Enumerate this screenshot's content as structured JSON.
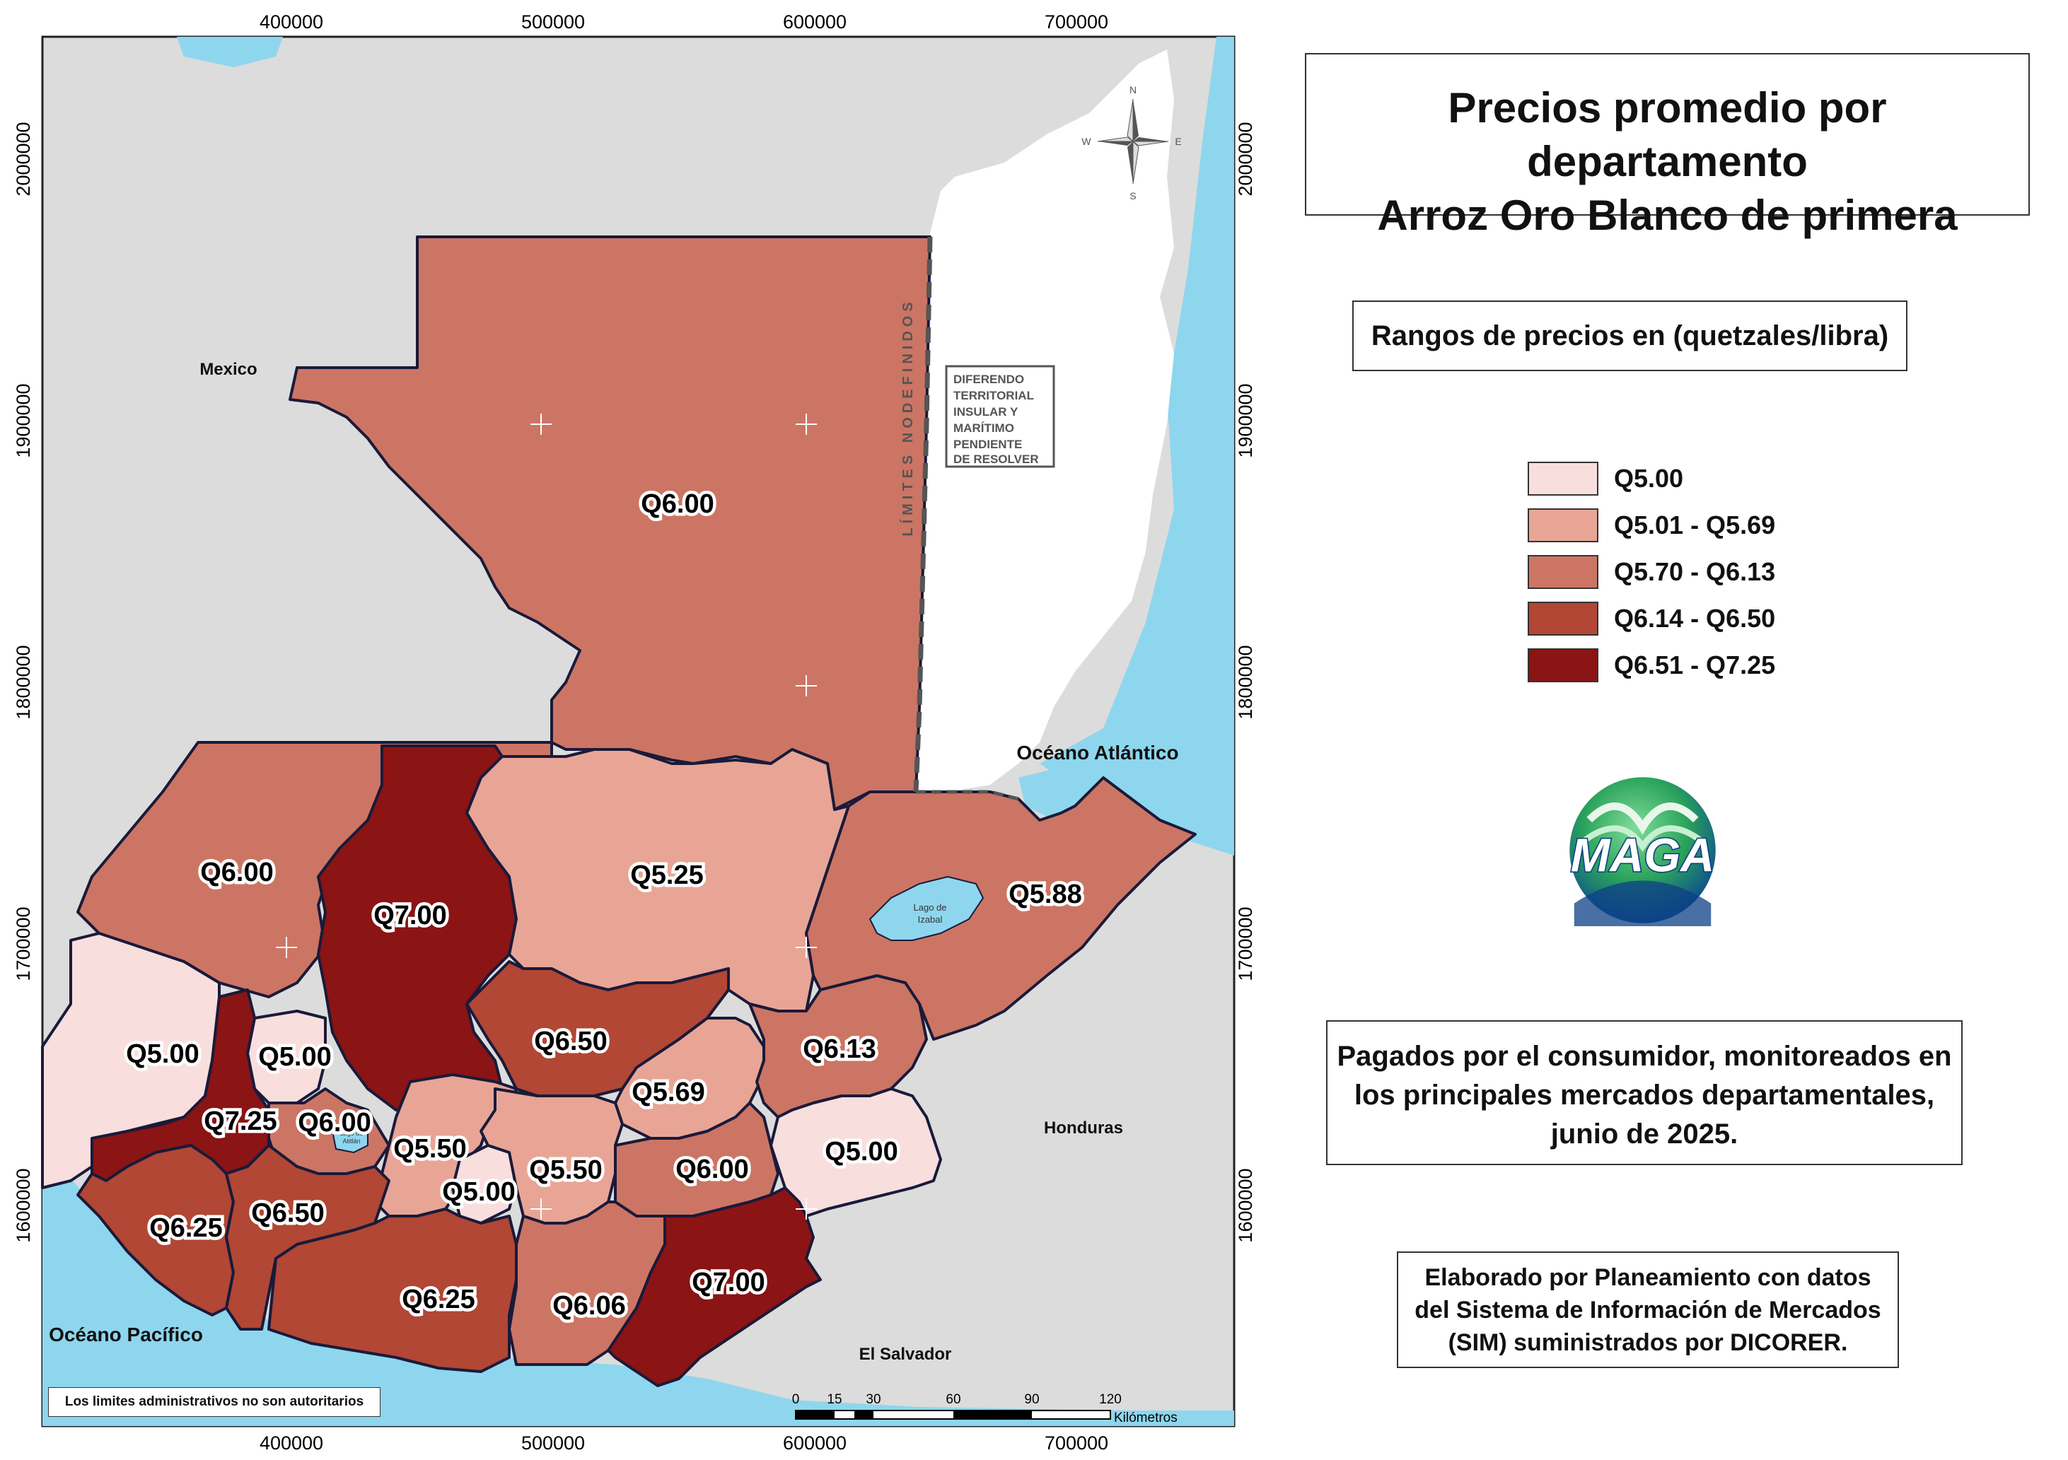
{
  "title": {
    "line1": "Precios promedio por departamento",
    "line2": "Arroz Oro Blanco de primera"
  },
  "ranges_title": "Rangos de precios en (quetzales/libra)",
  "legend": [
    {
      "label": "Q5.00",
      "color": "#f9dede"
    },
    {
      "label": "Q5.01 - Q5.69",
      "color": "#e8a596"
    },
    {
      "label": "Q5.70 - Q6.13",
      "color": "#cc7564"
    },
    {
      "label": "Q6.14 - Q6.50",
      "color": "#b14734"
    },
    {
      "label": "Q6.51 - Q7.25",
      "color": "#8b1414"
    }
  ],
  "paid_note": {
    "line1": "Pagados por el consumidor, monitoreados en",
    "line2": "los principales mercados departamentales,",
    "line3": "junio de 2025."
  },
  "credits": {
    "line1": "Elaborado por Planeamiento con datos",
    "line2": "del Sistema de Información de Mercados",
    "line3": "(SIM) suministrados por DICORER."
  },
  "disclaimer": "Los limites administrativos no son autoritarios",
  "logo_text": "MAGA",
  "axis_x": [
    "400000",
    "500000",
    "600000",
    "700000"
  ],
  "axis_y": [
    "2000000",
    "1900000",
    "1800000",
    "1700000",
    "1600000"
  ],
  "places": {
    "mexico": "Mexico",
    "honduras": "Honduras",
    "el_salvador": "El Salvador",
    "atlantic": "Océano Atlántico",
    "pacific": "Océano Pacífico",
    "lago_izabal_1": "Lago de",
    "lago_izabal_2": "Izabal",
    "lago_atitlan_1": "Lago de",
    "lago_atitlan_2": "Atitlán"
  },
  "limits_label": "LÍMITES NODEFINIDOS",
  "dispute_box": [
    "DIFERENDO",
    "TERRITORIAL",
    "INSULAR Y",
    "MARÍTIMO",
    "PENDIENTE",
    "DE RESOLVER"
  ],
  "compass": {
    "n": "N",
    "s": "S",
    "e": "E",
    "w": "W"
  },
  "scale": {
    "ticks": [
      "0",
      "15",
      "30",
      "60",
      "90",
      "120"
    ],
    "unit": "Kilómetros"
  },
  "departments": [
    {
      "id": "peten",
      "price": "Q6.00",
      "color": "#cc7564"
    },
    {
      "id": "huehuetenango",
      "price": "Q6.00",
      "color": "#cc7564"
    },
    {
      "id": "quiche",
      "price": "Q7.00",
      "color": "#8b1414"
    },
    {
      "id": "alta-verapaz",
      "price": "Q5.25",
      "color": "#e8a596"
    },
    {
      "id": "izabal",
      "price": "Q5.88",
      "color": "#cc7564"
    },
    {
      "id": "san-marcos",
      "price": "Q5.00",
      "color": "#f9dede"
    },
    {
      "id": "totonicapan",
      "price": "Q5.00",
      "color": "#f9dede"
    },
    {
      "id": "quetzaltenango",
      "price": "Q7.25",
      "color": "#8b1414"
    },
    {
      "id": "solola",
      "price": "Q6.00",
      "color": "#cc7564"
    },
    {
      "id": "baja-verapaz",
      "price": "Q6.50",
      "color": "#b14734"
    },
    {
      "id": "el-progreso",
      "price": "Q5.69",
      "color": "#e8a596"
    },
    {
      "id": "zacapa",
      "price": "Q6.13",
      "color": "#cc7564"
    },
    {
      "id": "chimaltenango",
      "price": "Q5.50",
      "color": "#e8a596"
    },
    {
      "id": "sacatepequez",
      "price": "Q5.00",
      "color": "#f9dede"
    },
    {
      "id": "guatemala",
      "price": "Q5.50",
      "color": "#e8a596"
    },
    {
      "id": "jalapa",
      "price": "Q6.00",
      "color": "#cc7564"
    },
    {
      "id": "chiquimula",
      "price": "Q5.00",
      "color": "#f9dede"
    },
    {
      "id": "retalhuleu",
      "price": "Q6.25",
      "color": "#b14734"
    },
    {
      "id": "suchitepequez",
      "price": "Q6.50",
      "color": "#b14734"
    },
    {
      "id": "escuintla",
      "price": "Q6.25",
      "color": "#b14734"
    },
    {
      "id": "santa-rosa",
      "price": "Q6.06",
      "color": "#cc7564"
    },
    {
      "id": "jutiapa",
      "price": "Q7.00",
      "color": "#8b1414"
    }
  ]
}
